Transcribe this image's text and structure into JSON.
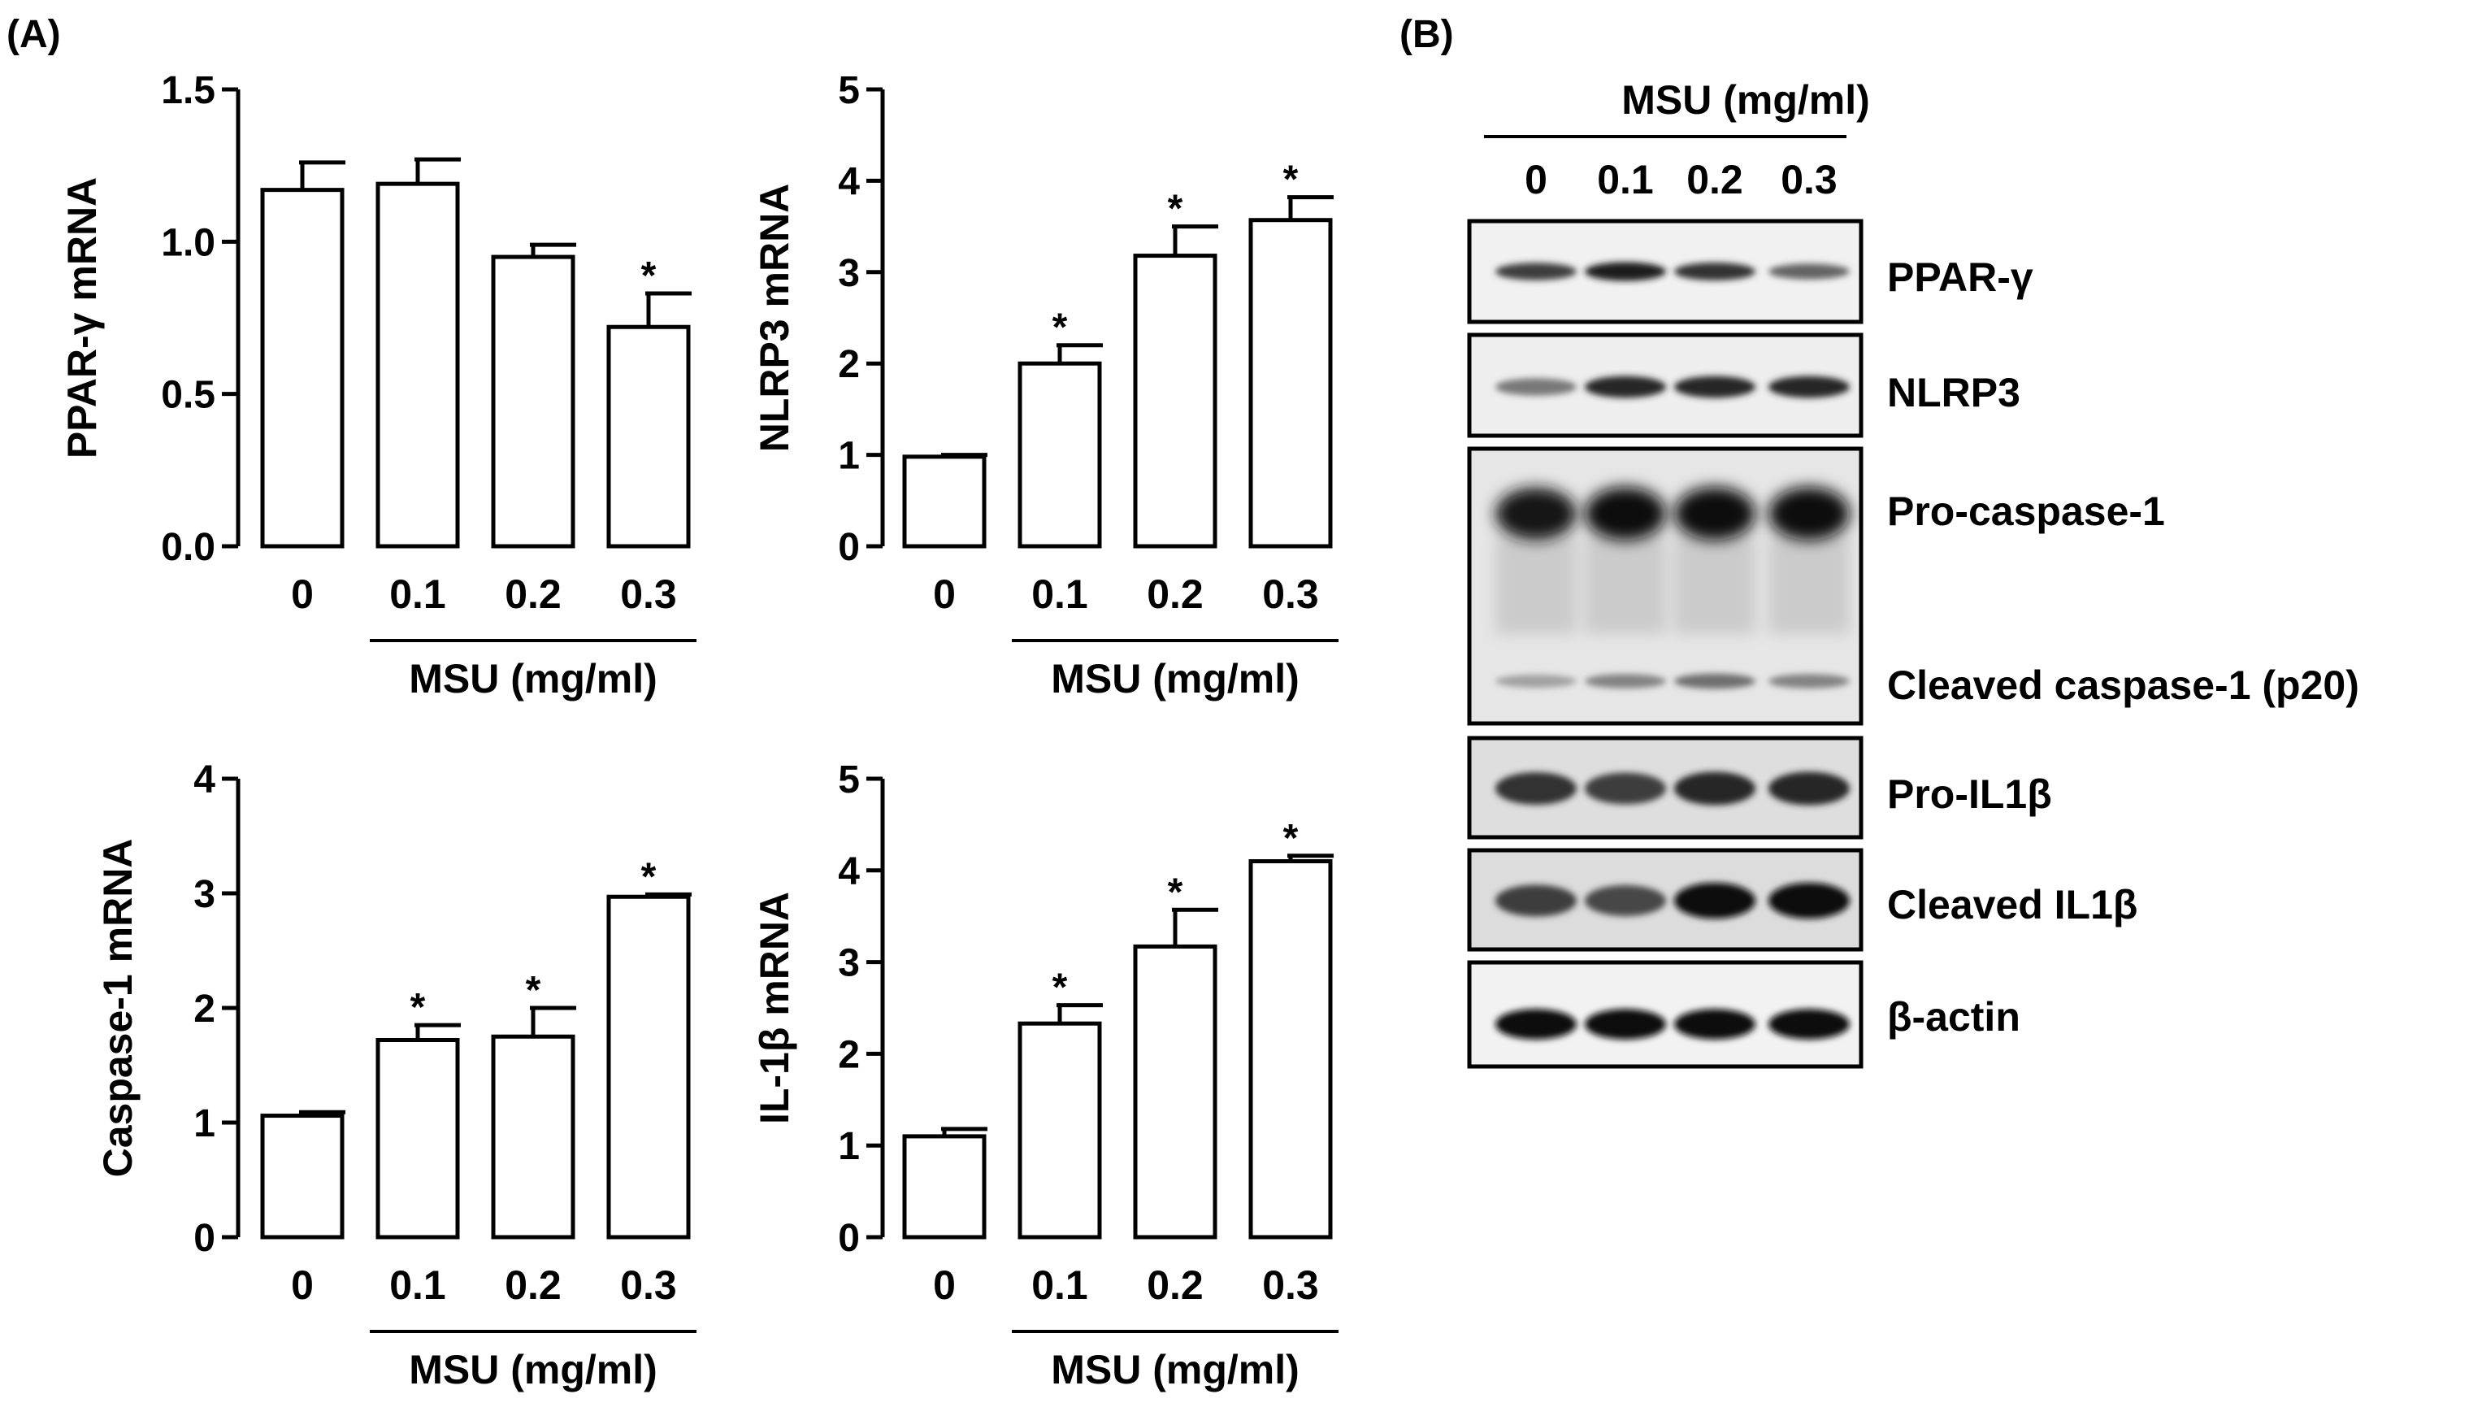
{
  "panel_labels": {
    "a": "(A)",
    "b": "(B)"
  },
  "chart_data": [
    {
      "type": "bar",
      "title": "",
      "xlabel": "MSU (mg/ml)",
      "ylabel": "PPAR-γ mRNA",
      "categories": [
        "0",
        "0.1",
        "0.2",
        "0.3"
      ],
      "values": [
        1.17,
        1.19,
        0.95,
        0.72
      ],
      "errors": [
        0.09,
        0.08,
        0.04,
        0.11
      ],
      "significant": [
        false,
        false,
        false,
        true
      ],
      "sig_marker": "*",
      "ylim": [
        0,
        1.5
      ],
      "yticks": [
        "0.0",
        "0.5",
        "1.0",
        "1.5"
      ],
      "grid": false
    },
    {
      "type": "bar",
      "title": "",
      "xlabel": "MSU (mg/ml)",
      "ylabel": "NLRP3 mRNA",
      "categories": [
        "0",
        "0.1",
        "0.2",
        "0.3"
      ],
      "values": [
        0.98,
        2.0,
        3.18,
        3.57
      ],
      "errors": [
        0.02,
        0.2,
        0.32,
        0.25
      ],
      "significant": [
        false,
        true,
        true,
        true
      ],
      "sig_marker": "*",
      "ylim": [
        0,
        5
      ],
      "yticks": [
        "0",
        "1",
        "2",
        "3",
        "4",
        "5"
      ],
      "grid": false
    },
    {
      "type": "bar",
      "title": "",
      "xlabel": "MSU (mg/ml)",
      "ylabel": "Caspase-1 mRNA",
      "categories": [
        "0",
        "0.1",
        "0.2",
        "0.3"
      ],
      "values": [
        1.06,
        1.72,
        1.75,
        2.97
      ],
      "errors": [
        0.03,
        0.13,
        0.25,
        0.02
      ],
      "significant": [
        false,
        true,
        true,
        true
      ],
      "sig_marker": "*",
      "ylim": [
        0,
        4
      ],
      "yticks": [
        "0",
        "1",
        "2",
        "3",
        "4"
      ],
      "grid": false
    },
    {
      "type": "bar",
      "title": "",
      "xlabel": "MSU (mg/ml)",
      "ylabel": "IL-1β mRNA",
      "categories": [
        "0",
        "0.1",
        "0.2",
        "0.3"
      ],
      "values": [
        1.1,
        2.33,
        3.17,
        4.1
      ],
      "errors": [
        0.08,
        0.2,
        0.4,
        0.06
      ],
      "significant": [
        false,
        true,
        true,
        true
      ],
      "sig_marker": "*",
      "ylim": [
        0,
        5
      ],
      "yticks": [
        "0",
        "1",
        "2",
        "3",
        "4",
        "5"
      ],
      "grid": false
    }
  ],
  "western_blot": {
    "header": "MSU (mg/ml)",
    "lanes": [
      "0",
      "0.1",
      "0.2",
      "0.3"
    ],
    "bands": [
      {
        "label": "PPAR-γ",
        "intensity": [
          0.75,
          0.9,
          0.8,
          0.55
        ]
      },
      {
        "label": "NLRP3",
        "intensity": [
          0.45,
          0.85,
          0.85,
          0.85
        ]
      },
      {
        "label": "Pro-caspase-1",
        "intensity": [
          0.95,
          1.0,
          1.0,
          1.0
        ]
      },
      {
        "label": "Cleaved caspase-1 (p20)",
        "intensity": [
          0.25,
          0.4,
          0.5,
          0.4
        ]
      },
      {
        "label": "Pro-IL1β",
        "intensity": [
          0.8,
          0.75,
          0.85,
          0.85
        ]
      },
      {
        "label": "Cleaved IL1β",
        "intensity": [
          0.75,
          0.7,
          1.0,
          1.0
        ]
      },
      {
        "label": "β-actin",
        "intensity": [
          1.0,
          1.0,
          1.0,
          1.0
        ]
      }
    ]
  }
}
